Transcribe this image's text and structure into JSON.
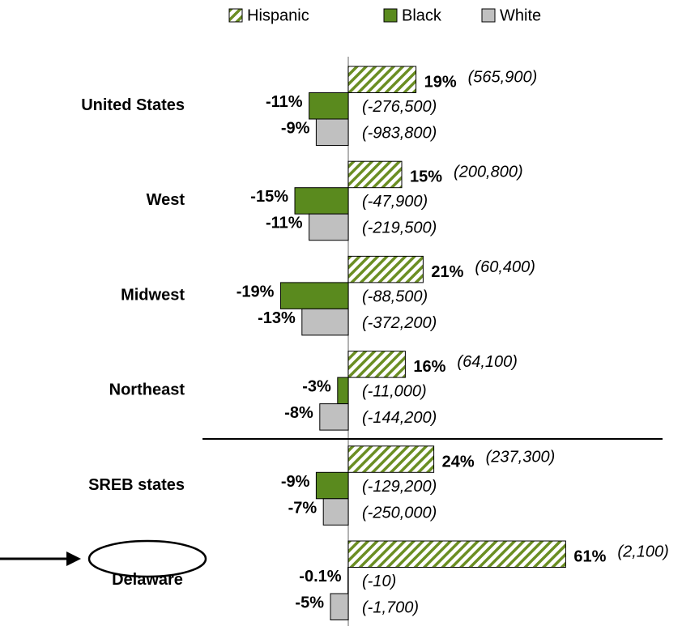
{
  "chart_data": {
    "type": "hbar",
    "categories": [
      "United States",
      "West",
      "Midwest",
      "Northeast",
      "SREB states",
      "Delaware"
    ],
    "series": [
      {
        "name": "Hispanic",
        "color": "#6b8e23",
        "pattern": "hatch",
        "values": [
          19,
          15,
          21,
          16,
          24,
          61
        ],
        "value_labels": [
          "19%",
          "15%",
          "21%",
          "16%",
          "24%",
          "61%"
        ],
        "counts": [
          "(565,900)",
          "(200,800)",
          "(60,400)",
          "(64,100)",
          "(237,300)",
          "(2,100)"
        ]
      },
      {
        "name": "Black",
        "color": "#5a8a1e",
        "values": [
          -11,
          -15,
          -19,
          -3,
          -9,
          -0.1
        ],
        "value_labels": [
          "-11%",
          "-15%",
          "-19%",
          "-3%",
          "-9%",
          "-0.1%"
        ],
        "counts": [
          "(-276,500)",
          "(-47,900)",
          "(-88,500)",
          "(-11,000)",
          "(-129,200)",
          "(-10)"
        ]
      },
      {
        "name": "White",
        "color": "#c0c0c0",
        "values": [
          -9,
          -11,
          -13,
          -8,
          -7,
          -5
        ],
        "value_labels": [
          "-9%",
          "-11%",
          "-13%",
          "-8%",
          "-7%",
          "-5%"
        ],
        "counts": [
          "(-983,800)",
          "(-219,500)",
          "(-372,200)",
          "(-144,200)",
          "(-250,000)",
          "(-1,700)"
        ]
      }
    ]
  }
}
